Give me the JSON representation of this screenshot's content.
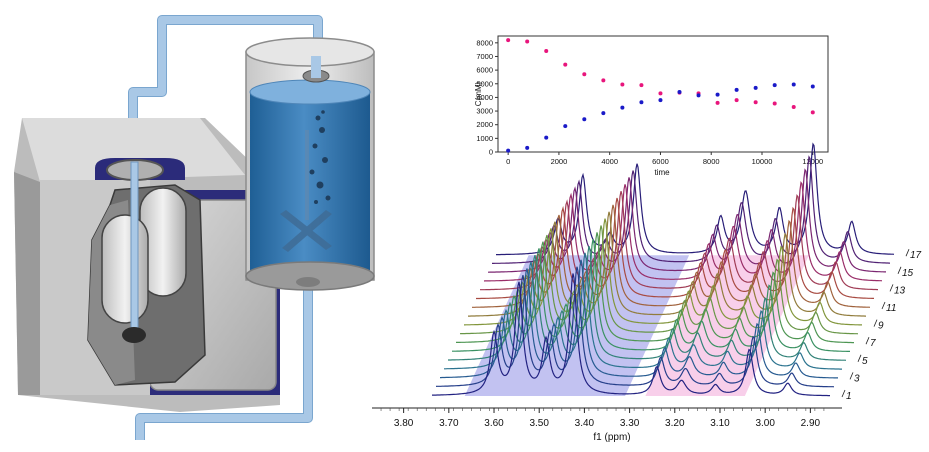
{
  "colors": {
    "series_a": "#e8157c",
    "series_b": "#1a1ac8",
    "region_a": "#8f8fe6",
    "region_b": "#f2a8d8",
    "tubing": "#a9c8e6",
    "liquid": "#3f83bd"
  },
  "chart_data": {
    "type": "scatter",
    "title": "",
    "xlabel": "time",
    "ylabel": "C(mM)",
    "xlim": [
      -400,
      12600
    ],
    "ylim": [
      0,
      8500
    ],
    "x_ticks": [
      "0",
      "2000",
      "4000",
      "6000",
      "8000",
      "10000",
      "12000"
    ],
    "y_ticks": [
      "0",
      "1000",
      "2000",
      "3000",
      "4000",
      "5000",
      "6000",
      "7000",
      "8000"
    ],
    "x": [
      0,
      750,
      1500,
      2250,
      3000,
      3750,
      4500,
      5250,
      6000,
      6750,
      7500,
      8250,
      9000,
      9750,
      10500,
      11250,
      12000
    ],
    "series": [
      {
        "color": "#e8157c",
        "values": [
          8200,
          8100,
          7400,
          6400,
          5700,
          5250,
          4950,
          4900,
          4300,
          4350,
          4300,
          3600,
          3800,
          3650,
          3550,
          3300,
          2900
        ]
      },
      {
        "color": "#1a1ac8",
        "values": [
          100,
          300,
          1050,
          1900,
          2400,
          2850,
          3250,
          3650,
          3800,
          4400,
          4150,
          4200,
          4550,
          4700,
          4900,
          4950,
          4800
        ]
      }
    ]
  },
  "spectra": {
    "type": "line",
    "xlabel": "f1 (ppm)",
    "x_ticks": [
      "3.80",
      "3.70",
      "3.60",
      "3.50",
      "3.40",
      "3.30",
      "3.20",
      "3.10",
      "3.00",
      "2.90"
    ],
    "trace_labels": [
      "1",
      "3",
      "5",
      "7",
      "9",
      "11",
      "13",
      "15",
      "17"
    ],
    "trace_count": 17
  }
}
